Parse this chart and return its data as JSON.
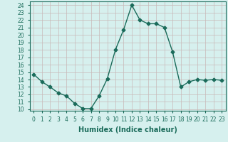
{
  "x": [
    0,
    1,
    2,
    3,
    4,
    5,
    6,
    7,
    8,
    9,
    10,
    11,
    12,
    13,
    14,
    15,
    16,
    17,
    18,
    19,
    20,
    21,
    22,
    23
  ],
  "y": [
    14.7,
    13.7,
    13.0,
    12.2,
    11.8,
    10.8,
    10.1,
    10.1,
    11.8,
    14.1,
    18.0,
    20.7,
    24.0,
    22.0,
    21.5,
    21.5,
    21.0,
    17.7,
    13.0,
    13.7,
    14.0,
    13.9,
    14.0,
    13.9
  ],
  "line_color": "#1a6b5a",
  "marker": "D",
  "marker_size": 2.5,
  "bg_color": "#d6f0ee",
  "grid_color": "#c8b8b8",
  "xlabel": "Humidex (Indice chaleur)",
  "ylabel_ticks": [
    10,
    11,
    12,
    13,
    14,
    15,
    16,
    17,
    18,
    19,
    20,
    21,
    22,
    23,
    24
  ],
  "ylim": [
    9.8,
    24.5
  ],
  "xlim": [
    -0.5,
    23.5
  ],
  "xticks": [
    0,
    1,
    2,
    3,
    4,
    5,
    6,
    7,
    8,
    9,
    10,
    11,
    12,
    13,
    14,
    15,
    16,
    17,
    18,
    19,
    20,
    21,
    22,
    23
  ],
  "tick_label_fontsize": 5.5,
  "xlabel_fontsize": 7.0,
  "line_width": 1.0
}
